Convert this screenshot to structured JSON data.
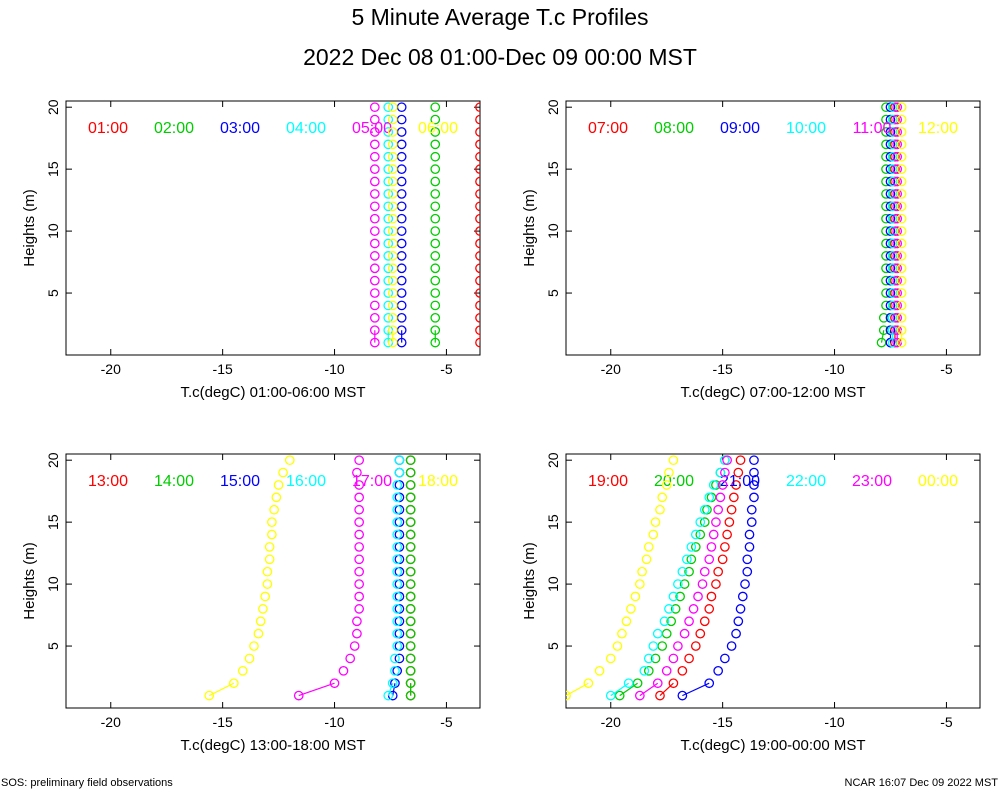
{
  "title": "5 Minute Average T.c Profiles",
  "subtitle": "2022 Dec 08 01:00-Dec 09 00:00 MST",
  "footer_left": "SOS: preliminary field observations",
  "footer_right": "NCAR 16:07 Dec 09 2022 MST",
  "colors": [
    "#ff0000",
    "#00cc00",
    "#0000ff",
    "#00ffff",
    "#ff00ff",
    "#ffff00"
  ],
  "chart_data": [
    {
      "type": "scatter",
      "xlabel": "T.c(degC) 01:00-06:00 MST",
      "ylabel": "Heights (m)",
      "xlim": [
        -22,
        -3.5
      ],
      "ylim": [
        0,
        20.5
      ],
      "xticks": [
        -20,
        -15,
        -10,
        -5
      ],
      "yticks": [
        5,
        10,
        15,
        20
      ],
      "series": [
        {
          "name": "01:00",
          "values": [
            -3.5,
            -3.5,
            -3.5,
            -3.5,
            -3.5,
            -3.5,
            -3.5,
            -3.5,
            -3.5,
            -3.5,
            -3.5,
            -3.5,
            -3.5,
            -3.5,
            -3.5,
            -3.5,
            -3.5,
            -3.5,
            -3.5,
            -3.5
          ]
        },
        {
          "name": "02:00",
          "values": [
            -5.5,
            -5.5,
            -5.5,
            -5.5,
            -5.5,
            -5.5,
            -5.5,
            -5.5,
            -5.5,
            -5.5,
            -5.5,
            -5.5,
            -5.5,
            -5.5,
            -5.5,
            -5.5,
            -5.5,
            -5.5,
            -5.5,
            -5.5
          ]
        },
        {
          "name": "03:00",
          "values": [
            -7.0,
            -7.0,
            -7.0,
            -7.0,
            -7.0,
            -7.0,
            -7.0,
            -7.0,
            -7.0,
            -7.0,
            -7.0,
            -7.0,
            -7.0,
            -7.0,
            -7.0,
            -7.0,
            -7.0,
            -7.0,
            -7.0,
            -7.0
          ]
        },
        {
          "name": "04:00",
          "values": [
            -7.6,
            -7.6,
            -7.6,
            -7.6,
            -7.6,
            -7.6,
            -7.6,
            -7.6,
            -7.6,
            -7.6,
            -7.6,
            -7.6,
            -7.6,
            -7.6,
            -7.6,
            -7.6,
            -7.6,
            -7.6,
            -7.6,
            -7.6
          ]
        },
        {
          "name": "05:00",
          "values": [
            -8.2,
            -8.2,
            -8.2,
            -8.2,
            -8.2,
            -8.2,
            -8.2,
            -8.2,
            -8.2,
            -8.2,
            -8.2,
            -8.2,
            -8.2,
            -8.2,
            -8.2,
            -8.2,
            -8.2,
            -8.2,
            -8.2,
            -8.2
          ]
        },
        {
          "name": "06:00",
          "values": [
            -7.4,
            -7.4,
            -7.4,
            -7.4,
            -7.4,
            -7.4,
            -7.4,
            -7.4,
            -7.4,
            -7.4,
            -7.4,
            -7.4,
            -7.4,
            -7.4,
            -7.4,
            -7.4,
            -7.4,
            -7.4,
            -7.4,
            -7.4
          ]
        }
      ],
      "heights": [
        1,
        2,
        3,
        4,
        5,
        6,
        7,
        8,
        9,
        10,
        11,
        12,
        13,
        14,
        15,
        16,
        17,
        18,
        19,
        20
      ]
    },
    {
      "type": "scatter",
      "xlabel": "T.c(degC) 07:00-12:00 MST",
      "ylabel": "Heights (m)",
      "xlim": [
        -22,
        -3.5
      ],
      "ylim": [
        0,
        20.5
      ],
      "xticks": [
        -20,
        -15,
        -10,
        -5
      ],
      "yticks": [
        5,
        10,
        15,
        20
      ],
      "series": [
        {
          "name": "07:00",
          "values": [
            -7.3,
            -7.3,
            -7.3,
            -7.3,
            -7.3,
            -7.3,
            -7.3,
            -7.3,
            -7.3,
            -7.3,
            -7.3,
            -7.3,
            -7.3,
            -7.3,
            -7.3,
            -7.3,
            -7.3,
            -7.3,
            -7.3,
            -7.3
          ]
        },
        {
          "name": "08:00",
          "values": [
            -7.9,
            -7.8,
            -7.8,
            -7.7,
            -7.7,
            -7.7,
            -7.7,
            -7.7,
            -7.7,
            -7.7,
            -7.7,
            -7.7,
            -7.7,
            -7.7,
            -7.7,
            -7.7,
            -7.7,
            -7.7,
            -7.7,
            -7.7
          ]
        },
        {
          "name": "09:00",
          "values": [
            -7.5,
            -7.5,
            -7.5,
            -7.5,
            -7.5,
            -7.5,
            -7.5,
            -7.5,
            -7.5,
            -7.5,
            -7.5,
            -7.5,
            -7.5,
            -7.5,
            -7.5,
            -7.5,
            -7.5,
            -7.5,
            -7.5,
            -7.5
          ]
        },
        {
          "name": "10:00",
          "values": [
            -7.4,
            -7.4,
            -7.4,
            -7.4,
            -7.4,
            -7.4,
            -7.4,
            -7.4,
            -7.4,
            -7.4,
            -7.4,
            -7.4,
            -7.4,
            -7.4,
            -7.4,
            -7.4,
            -7.4,
            -7.4,
            -7.4,
            -7.4
          ]
        },
        {
          "name": "11:00",
          "values": [
            -7.2,
            -7.2,
            -7.2,
            -7.2,
            -7.2,
            -7.2,
            -7.2,
            -7.2,
            -7.2,
            -7.2,
            -7.2,
            -7.2,
            -7.2,
            -7.2,
            -7.2,
            -7.2,
            -7.2,
            -7.2,
            -7.2,
            -7.2
          ]
        },
        {
          "name": "12:00",
          "values": [
            -7.0,
            -7.0,
            -7.0,
            -7.0,
            -7.0,
            -7.0,
            -7.0,
            -7.0,
            -7.0,
            -7.0,
            -7.0,
            -7.0,
            -7.0,
            -7.0,
            -7.0,
            -7.0,
            -7.0,
            -7.0,
            -7.0,
            -7.0
          ]
        }
      ],
      "heights": [
        1,
        2,
        3,
        4,
        5,
        6,
        7,
        8,
        9,
        10,
        11,
        12,
        13,
        14,
        15,
        16,
        17,
        18,
        19,
        20
      ]
    },
    {
      "type": "scatter",
      "xlabel": "T.c(degC) 13:00-18:00 MST",
      "ylabel": "Heights (m)",
      "xlim": [
        -22,
        -3.5
      ],
      "ylim": [
        0,
        20.5
      ],
      "xticks": [
        -20,
        -15,
        -10,
        -5
      ],
      "yticks": [
        5,
        10,
        15,
        20
      ],
      "series": [
        {
          "name": "13:00",
          "values": [
            -6.6,
            -6.6,
            -6.6,
            -6.6,
            -6.6,
            -6.6,
            -6.6,
            -6.6,
            -6.6,
            -6.6,
            -6.6,
            -6.6,
            -6.6,
            -6.6,
            -6.6,
            -6.6,
            -6.6,
            -6.6,
            -6.6,
            -6.6
          ]
        },
        {
          "name": "14:00",
          "values": [
            -6.6,
            -6.6,
            -6.6,
            -6.6,
            -6.6,
            -6.6,
            -6.6,
            -6.6,
            -6.6,
            -6.6,
            -6.6,
            -6.6,
            -6.6,
            -6.6,
            -6.6,
            -6.6,
            -6.6,
            -6.6,
            -6.6,
            -6.6
          ]
        },
        {
          "name": "15:00",
          "values": [
            -7.4,
            -7.3,
            -7.2,
            -7.1,
            -7.1,
            -7.1,
            -7.1,
            -7.1,
            -7.1,
            -7.1,
            -7.1,
            -7.1,
            -7.1,
            -7.1,
            -7.1,
            -7.1,
            -7.1,
            -7.1,
            -7.1,
            -7.1
          ]
        },
        {
          "name": "16:00",
          "values": [
            -7.6,
            -7.4,
            -7.3,
            -7.3,
            -7.2,
            -7.2,
            -7.2,
            -7.2,
            -7.2,
            -7.2,
            -7.2,
            -7.2,
            -7.2,
            -7.2,
            -7.2,
            -7.2,
            -7.2,
            -7.2,
            -7.1,
            -7.1
          ]
        },
        {
          "name": "17:00",
          "values": [
            -11.6,
            -10.0,
            -9.6,
            -9.3,
            -9.1,
            -9.0,
            -9.0,
            -8.9,
            -8.9,
            -8.9,
            -8.9,
            -8.9,
            -8.9,
            -8.9,
            -8.9,
            -8.9,
            -8.9,
            -8.9,
            -9.0,
            -8.9
          ]
        },
        {
          "name": "18:00",
          "values": [
            -15.6,
            -14.5,
            -14.1,
            -13.8,
            -13.6,
            -13.4,
            -13.3,
            -13.2,
            -13.1,
            -13.0,
            -13.0,
            -12.9,
            -12.9,
            -12.8,
            -12.8,
            -12.7,
            -12.6,
            -12.5,
            -12.3,
            -12.0
          ]
        }
      ],
      "heights": [
        1,
        2,
        3,
        4,
        5,
        6,
        7,
        8,
        9,
        10,
        11,
        12,
        13,
        14,
        15,
        16,
        17,
        18,
        19,
        20
      ]
    },
    {
      "type": "scatter",
      "xlabel": "T.c(degC) 19:00-00:00 MST",
      "ylabel": "Heights (m)",
      "xlim": [
        -22,
        -3.5
      ],
      "ylim": [
        0,
        20.5
      ],
      "xticks": [
        -20,
        -15,
        -10,
        -5
      ],
      "yticks": [
        5,
        10,
        15,
        20
      ],
      "series": [
        {
          "name": "19:00",
          "values": [
            -17.8,
            -17.2,
            -16.8,
            -16.5,
            -16.2,
            -16.0,
            -15.8,
            -15.6,
            -15.5,
            -15.3,
            -15.2,
            -15.0,
            -14.9,
            -14.8,
            -14.7,
            -14.6,
            -14.5,
            -14.4,
            -14.3,
            -14.2
          ]
        },
        {
          "name": "20:00",
          "values": [
            -19.6,
            -18.8,
            -18.3,
            -18.0,
            -17.7,
            -17.5,
            -17.3,
            -17.1,
            -16.9,
            -16.7,
            -16.5,
            -16.4,
            -16.2,
            -16.0,
            -15.8,
            -15.7,
            -15.5,
            -15.3,
            -15.1,
            -14.9
          ]
        },
        {
          "name": "21:00",
          "values": [
            -16.8,
            -15.6,
            -15.2,
            -14.9,
            -14.6,
            -14.4,
            -14.3,
            -14.2,
            -14.1,
            -14.0,
            -13.9,
            -13.9,
            -13.8,
            -13.8,
            -13.7,
            -13.7,
            -13.6,
            -13.6,
            -13.6,
            -13.6
          ]
        },
        {
          "name": "22:00",
          "values": [
            -20.0,
            -19.2,
            -18.5,
            -18.3,
            -18.1,
            -17.9,
            -17.6,
            -17.4,
            -17.2,
            -17.0,
            -16.8,
            -16.6,
            -16.4,
            -16.2,
            -16.0,
            -15.8,
            -15.6,
            -15.4,
            -15.1,
            -14.9
          ]
        },
        {
          "name": "23:00",
          "values": [
            -18.7,
            -17.9,
            -17.5,
            -17.2,
            -17.0,
            -16.7,
            -16.5,
            -16.3,
            -16.1,
            -15.9,
            -15.8,
            -15.6,
            -15.5,
            -15.4,
            -15.3,
            -15.2,
            -15.1,
            -15.0,
            -14.9,
            -14.8
          ]
        },
        {
          "name": "00:00",
          "values": [
            -22.0,
            -21.0,
            -20.5,
            -20.0,
            -19.7,
            -19.5,
            -19.3,
            -19.1,
            -18.9,
            -18.7,
            -18.6,
            -18.4,
            -18.3,
            -18.1,
            -18.0,
            -17.8,
            -17.7,
            -17.5,
            -17.4,
            -17.2
          ]
        }
      ],
      "heights": [
        1,
        2,
        3,
        4,
        5,
        6,
        7,
        8,
        9,
        10,
        11,
        12,
        13,
        14,
        15,
        16,
        17,
        18,
        19,
        20
      ]
    }
  ]
}
